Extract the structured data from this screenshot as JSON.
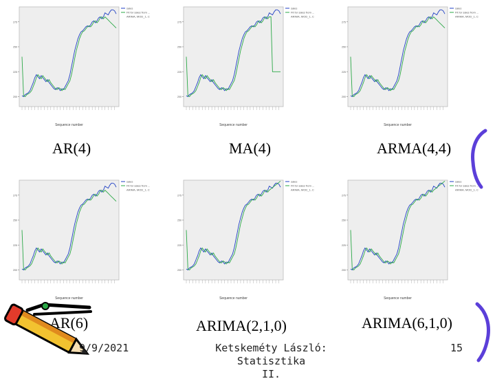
{
  "slide": {
    "footer": {
      "date": "9/9/2021",
      "author_line1": "Ketskeméty László: Statisztika",
      "author_line2": "II.",
      "page": "15"
    },
    "icons": [
      "pencil-icon",
      "left-bracket-icon",
      "right-bracket-icon"
    ]
  },
  "colors": {
    "observed": "#1f3fc4",
    "fitted": "#2aa846",
    "bracket": "#5b3fd9"
  },
  "chart_data": [
    {
      "type": "line",
      "model": "AR(4)",
      "xlabel": "Sequence number",
      "y_ticks": [
        "200",
        "225",
        "250",
        "275"
      ],
      "ylim": [
        190,
        290
      ],
      "legend": [
        "sales",
        "Fit for sales from ...",
        "ARIMA, MOD_1, CON"
      ],
      "legend_position": "top-right",
      "forecast": "drop"
    },
    {
      "type": "line",
      "model": "MA(4)",
      "xlabel": "Sequence number",
      "y_ticks": [
        "200",
        "225",
        "250",
        "275"
      ],
      "ylim": [
        190,
        290
      ],
      "legend": [
        "sales",
        "Fit for sales from ...",
        "ARIMA, MOD_1, CON"
      ],
      "legend_position": "top-right",
      "forecast": "flat"
    },
    {
      "type": "line",
      "model": "ARMA(4,4)",
      "xlabel": "Sequence number",
      "y_ticks": [
        "200",
        "225",
        "250",
        "275"
      ],
      "ylim": [
        190,
        290
      ],
      "legend": [
        "sales",
        "Fit for sales from ...",
        "ARIMA, MOD_1, CON"
      ],
      "legend_position": "top-right",
      "forecast": "drop"
    },
    {
      "type": "line",
      "model": "AR(6)",
      "xlabel": "Sequence number",
      "y_ticks": [
        "200",
        "225",
        "250",
        "275"
      ],
      "ylim": [
        190,
        290
      ],
      "legend": [
        "sales",
        "Fit for sales from ...",
        "ARIMA, MOD_1, CON"
      ],
      "legend_position": "top-right",
      "forecast": "drop"
    },
    {
      "type": "line",
      "model": "ARIMA(2,1,0)",
      "xlabel": "Sequence number",
      "y_ticks": [
        "200",
        "225",
        "250",
        "275"
      ],
      "ylim": [
        190,
        290
      ],
      "legend": [
        "sales",
        "Fit for sales from ...",
        "ARIMA, MOD_1, CON"
      ],
      "legend_position": "top-right",
      "forecast": "follow"
    },
    {
      "type": "line",
      "model": "ARIMA(6,1,0)",
      "xlabel": "Sequence number",
      "y_ticks": [
        "200",
        "225",
        "250",
        "275"
      ],
      "ylim": [
        190,
        290
      ],
      "legend": [
        "sales",
        "Fit for sales from ...",
        "ARIMA, MOD_1, CON"
      ],
      "legend_position": "top-right",
      "forecast": "follow"
    }
  ],
  "series": {
    "name": "sales",
    "values": [
      201,
      200,
      202,
      203,
      204,
      206,
      210,
      214,
      219,
      222,
      220,
      218,
      221,
      219,
      217,
      215,
      217,
      214,
      212,
      210,
      208,
      207,
      209,
      208,
      206,
      208,
      207,
      210,
      213,
      216,
      222,
      230,
      238,
      246,
      252,
      258,
      262,
      265,
      266,
      268,
      270,
      271,
      270,
      272,
      275,
      276,
      274,
      276,
      279,
      280,
      278,
      280,
      284,
      283,
      282,
      285,
      287,
      287,
      286,
      283
    ]
  }
}
